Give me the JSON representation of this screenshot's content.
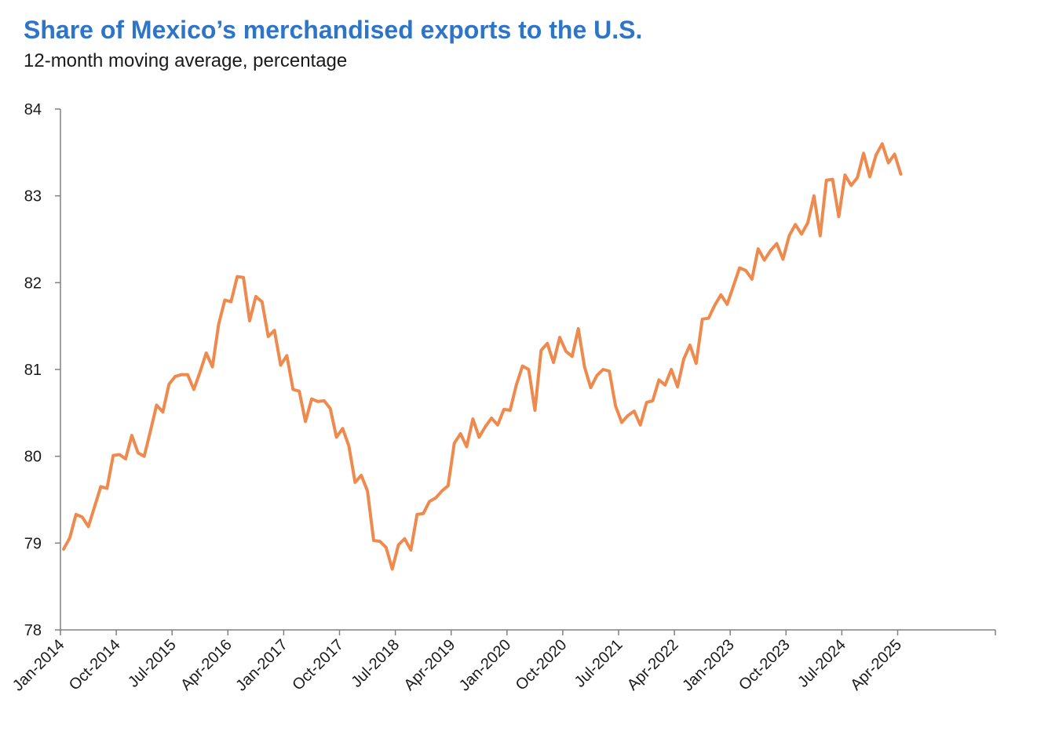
{
  "chart_data": {
    "type": "line",
    "title": "Share of Mexico’s merchandised exports to the U.S.",
    "subtitle": "12-month moving average, percentage",
    "xlabel": "",
    "ylabel": "",
    "ylim": [
      78,
      84
    ],
    "yticks": [
      78,
      79,
      80,
      81,
      82,
      83,
      84
    ],
    "xticks": [
      "Jan-2014",
      "Oct-2014",
      "Jul-2015",
      "Apr-2016",
      "Jan-2017",
      "Oct-2017",
      "Jul-2018",
      "Apr-2019",
      "Jan-2020",
      "Oct-2020",
      "Jul-2021",
      "Apr-2022",
      "Jan-2023",
      "Oct-2023",
      "Jul-2024",
      "Apr-2025"
    ],
    "grid": false,
    "legend": "none",
    "color": "#EE8A4E",
    "x_start": "Jan-2014",
    "x_frequency": "monthly",
    "series": [
      {
        "values": [
          78.93,
          79.06,
          79.33,
          79.3,
          79.19,
          79.42,
          79.65,
          79.63,
          80.01,
          80.02,
          79.97,
          80.24,
          80.04,
          80.0,
          80.29,
          80.59,
          80.51,
          80.83,
          80.92,
          80.94,
          80.94,
          80.77,
          80.97,
          81.19,
          81.03,
          81.52,
          81.8,
          81.78,
          82.07,
          82.06,
          81.56,
          81.84,
          81.78,
          81.38,
          81.45,
          81.05,
          81.16,
          80.77,
          80.75,
          80.4,
          80.66,
          80.63,
          80.64,
          80.55,
          80.22,
          80.32,
          80.12,
          79.7,
          79.78,
          79.6,
          79.03,
          79.02,
          78.95,
          78.7,
          78.98,
          79.05,
          78.92,
          79.33,
          79.34,
          79.48,
          79.52,
          79.6,
          79.66,
          80.15,
          80.26,
          80.11,
          80.43,
          80.22,
          80.34,
          80.44,
          80.36,
          80.54,
          80.53,
          80.82,
          81.04,
          81.0,
          80.53,
          81.22,
          81.3,
          81.08,
          81.37,
          81.21,
          81.15,
          81.47,
          81.03,
          80.79,
          80.93,
          81.0,
          80.98,
          80.58,
          80.39,
          80.47,
          80.52,
          80.36,
          80.62,
          80.64,
          80.88,
          80.82,
          81.0,
          80.8,
          81.12,
          81.28,
          81.07,
          81.58,
          81.59,
          81.74,
          81.86,
          81.75,
          81.96,
          82.17,
          82.14,
          82.04,
          82.39,
          82.26,
          82.37,
          82.45,
          82.27,
          82.54,
          82.67,
          82.56,
          82.69,
          83.0,
          82.54,
          83.18,
          83.19,
          82.76,
          83.24,
          83.12,
          83.21,
          83.49,
          83.22,
          83.47,
          83.6,
          83.38,
          83.48,
          83.25
        ]
      }
    ]
  }
}
